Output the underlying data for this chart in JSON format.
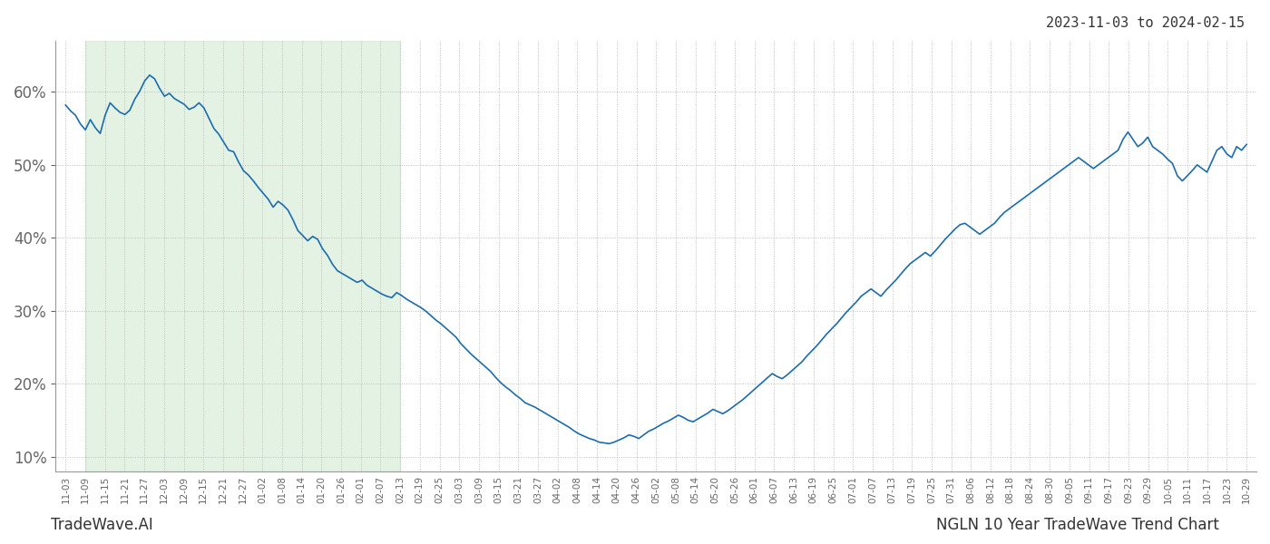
{
  "title_top_right": "2023-11-03 to 2024-02-15",
  "bottom_left": "TradeWave.AI",
  "bottom_right": "NGLN 10 Year TradeWave Trend Chart",
  "line_color": "#1b6cb0",
  "line_width": 1.2,
  "shade_color": "#c8e6c8",
  "shade_alpha": 0.5,
  "shade_start_label": "11-09",
  "shade_end_label": "02-13",
  "ylim": [
    8,
    67
  ],
  "yticks": [
    10,
    20,
    30,
    40,
    50,
    60
  ],
  "background_color": "#ffffff",
  "grid_color": "#bbbbbb",
  "grid_style": "dotted",
  "x_labels": [
    "11-03",
    "11-09",
    "11-15",
    "11-21",
    "11-27",
    "12-03",
    "12-09",
    "12-15",
    "12-21",
    "12-27",
    "01-02",
    "01-08",
    "01-14",
    "01-20",
    "01-26",
    "02-01",
    "02-07",
    "02-13",
    "02-19",
    "02-25",
    "03-03",
    "03-09",
    "03-15",
    "03-21",
    "03-27",
    "04-02",
    "04-08",
    "04-14",
    "04-20",
    "04-26",
    "05-02",
    "05-08",
    "05-14",
    "05-20",
    "05-26",
    "06-01",
    "06-07",
    "06-13",
    "06-19",
    "06-25",
    "07-01",
    "07-07",
    "07-13",
    "07-19",
    "07-25",
    "07-31",
    "08-06",
    "08-12",
    "08-18",
    "08-24",
    "08-30",
    "09-05",
    "09-11",
    "09-17",
    "09-23",
    "09-29",
    "10-05",
    "10-11",
    "10-17",
    "10-23",
    "10-29"
  ],
  "y_values": [
    58.2,
    57.4,
    56.8,
    55.6,
    54.8,
    56.2,
    55.1,
    54.3,
    56.8,
    58.5,
    57.8,
    57.2,
    56.9,
    57.5,
    59.0,
    60.1,
    61.5,
    62.3,
    61.8,
    60.5,
    59.4,
    59.8,
    59.1,
    58.7,
    58.3,
    57.6,
    57.9,
    58.5,
    57.8,
    56.4,
    55.0,
    54.2,
    53.1,
    52.0,
    51.8,
    50.4,
    49.2,
    48.6,
    47.8,
    46.9,
    46.1,
    45.3,
    44.2,
    45.0,
    44.5,
    43.8,
    42.5,
    41.0,
    40.3,
    39.6,
    40.2,
    39.8,
    38.5,
    37.6,
    36.4,
    35.5,
    35.1,
    34.7,
    34.3,
    33.9,
    34.2,
    33.5,
    33.1,
    32.7,
    32.3,
    32.0,
    31.8,
    32.5,
    32.1,
    31.6,
    31.2,
    30.8,
    30.4,
    29.9,
    29.3,
    28.7,
    28.2,
    27.6,
    27.0,
    26.4,
    25.5,
    24.8,
    24.1,
    23.5,
    22.9,
    22.3,
    21.7,
    20.9,
    20.2,
    19.6,
    19.1,
    18.5,
    18.0,
    17.4,
    17.1,
    16.8,
    16.4,
    16.0,
    15.6,
    15.2,
    14.8,
    14.4,
    14.0,
    13.5,
    13.1,
    12.8,
    12.5,
    12.3,
    12.0,
    11.9,
    11.8,
    12.0,
    12.3,
    12.6,
    13.0,
    12.8,
    12.5,
    13.0,
    13.5,
    13.8,
    14.2,
    14.6,
    14.9,
    15.3,
    15.7,
    15.4,
    15.0,
    14.8,
    15.2,
    15.6,
    16.0,
    16.5,
    16.2,
    15.9,
    16.3,
    16.8,
    17.3,
    17.8,
    18.4,
    19.0,
    19.6,
    20.2,
    20.8,
    21.4,
    21.0,
    20.7,
    21.2,
    21.8,
    22.4,
    23.0,
    23.8,
    24.5,
    25.2,
    26.0,
    26.8,
    27.5,
    28.2,
    29.0,
    29.8,
    30.5,
    31.2,
    32.0,
    32.5,
    33.0,
    32.5,
    32.0,
    32.8,
    33.5,
    34.2,
    35.0,
    35.8,
    36.5,
    37.0,
    37.5,
    38.0,
    37.5,
    38.2,
    39.0,
    39.8,
    40.5,
    41.2,
    41.8,
    42.0,
    41.5,
    41.0,
    40.5,
    41.0,
    41.5,
    42.0,
    42.8,
    43.5,
    44.0,
    44.5,
    45.0,
    45.5,
    46.0,
    46.5,
    47.0,
    47.5,
    48.0,
    48.5,
    49.0,
    49.5,
    50.0,
    50.5,
    51.0,
    50.5,
    50.0,
    49.5,
    50.0,
    50.5,
    51.0,
    51.5,
    52.0,
    53.5,
    54.5,
    53.5,
    52.5,
    53.0,
    53.8,
    52.5,
    52.0,
    51.5,
    50.8,
    50.2,
    48.5,
    47.8,
    48.5,
    49.2,
    50.0,
    49.5,
    49.0,
    50.5,
    52.0,
    52.5,
    51.5,
    51.0,
    52.5,
    52.0,
    52.8
  ]
}
